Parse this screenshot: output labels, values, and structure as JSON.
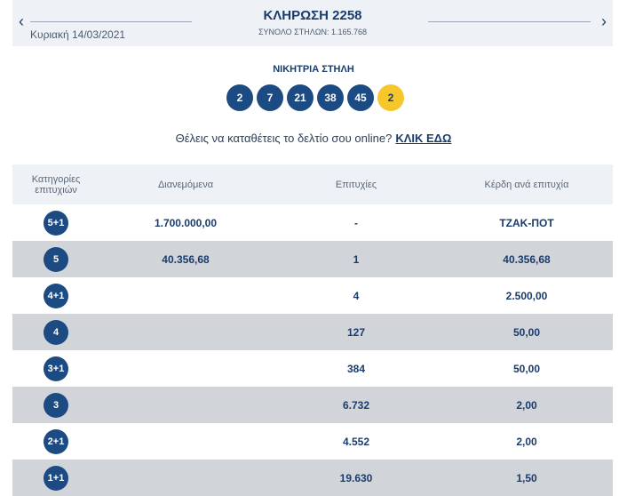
{
  "header": {
    "prev_icon": "chevron-left-icon",
    "next_icon": "chevron-right-icon",
    "date": "Κυριακή 14/03/2021",
    "title": "ΚΛΗΡΩΣΗ 2258",
    "total_columns": "ΣΥΝΟΛΟ ΣΤΗΛΩΝ: 1.165.768"
  },
  "winning": {
    "label": "ΝΙΚΗΤΡΙΑ ΣΤΗΛΗ",
    "numbers": [
      "2",
      "7",
      "21",
      "38",
      "45"
    ],
    "joker": "2"
  },
  "cta": {
    "text": "Θέλεις να καταθέτεις το δελτίο σου online?",
    "link": "ΚΛΙΚ ΕΔΩ"
  },
  "table": {
    "headers": {
      "category": "Κατηγορίες επιτυχιών",
      "distributed": "Διανεμόμενα",
      "winners": "Επιτυχίες",
      "prize": "Κέρδη ανά επιτυχία"
    },
    "rows": [
      {
        "category": "5+1",
        "distributed": "1.700.000,00",
        "winners": "-",
        "prize": "ΤΖΑΚ-ΠΟΤ"
      },
      {
        "category": "5",
        "distributed": "40.356,68",
        "winners": "1",
        "prize": "40.356,68"
      },
      {
        "category": "4+1",
        "distributed": "",
        "winners": "4",
        "prize": "2.500,00"
      },
      {
        "category": "4",
        "distributed": "",
        "winners": "127",
        "prize": "50,00"
      },
      {
        "category": "3+1",
        "distributed": "",
        "winners": "384",
        "prize": "50,00"
      },
      {
        "category": "3",
        "distributed": "",
        "winners": "6.732",
        "prize": "2,00"
      },
      {
        "category": "2+1",
        "distributed": "",
        "winners": "4.552",
        "prize": "2,00"
      },
      {
        "category": "1+1",
        "distributed": "",
        "winners": "19.630",
        "prize": "1,50"
      }
    ]
  }
}
